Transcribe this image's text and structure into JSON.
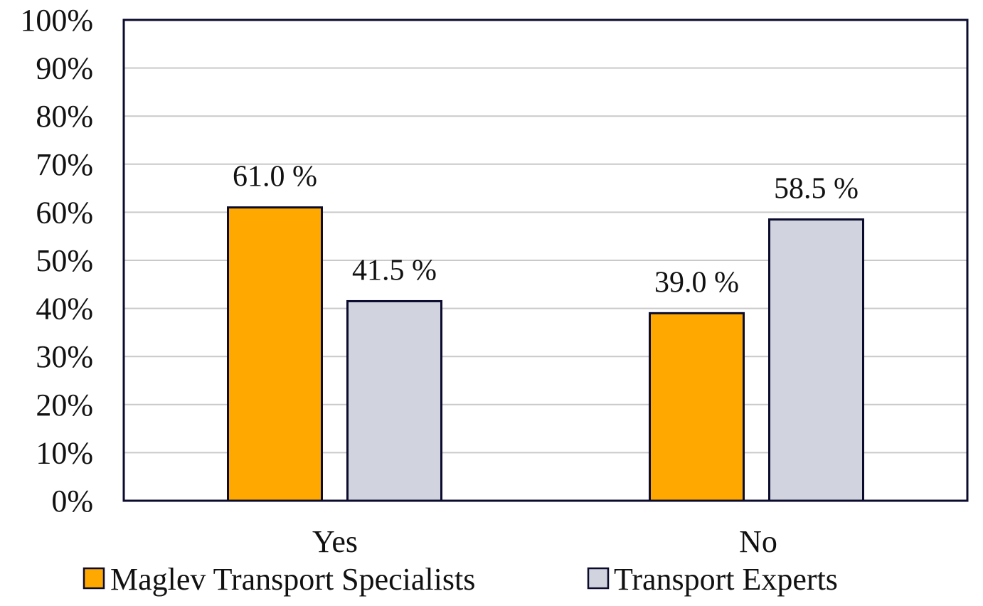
{
  "chart_data": {
    "type": "bar",
    "categories": [
      "Yes",
      "No"
    ],
    "series": [
      {
        "name": "Maglev Transport Specialists",
        "values": [
          61.0,
          39.0
        ],
        "labels": [
          "61.0 %",
          "39.0 %"
        ],
        "color": "#FFA800"
      },
      {
        "name": "Transport Experts",
        "values": [
          41.5,
          58.5
        ],
        "labels": [
          "41.5 %",
          "58.5 %"
        ],
        "color": "#D1D3DE"
      }
    ],
    "title": "",
    "xlabel": "",
    "ylabel": "",
    "ylim": [
      0,
      100
    ],
    "yticks": [
      "0%",
      "10%",
      "20%",
      "30%",
      "40%",
      "50%",
      "60%",
      "70%",
      "80%",
      "90%",
      "100%"
    ],
    "grid": true,
    "legend_position": "bottom"
  },
  "colors": {
    "gridline": "#c9c9c9",
    "bar_outline": "#0b0b2e",
    "plot_border": "#0b0b2e"
  }
}
